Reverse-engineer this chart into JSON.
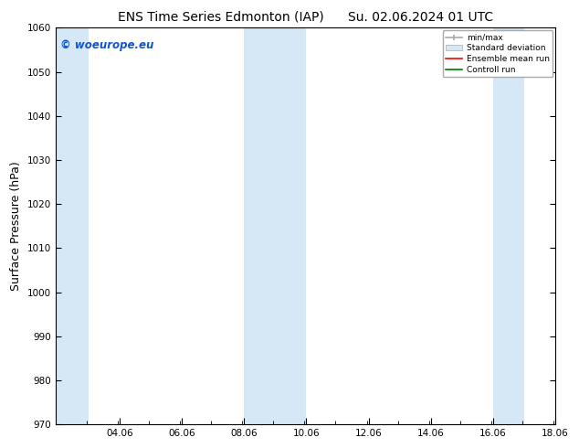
{
  "title_left": "ENS Time Series Edmonton (IAP)",
  "title_right": "Su. 02.06.2024 01 UTC",
  "ylabel": "Surface Pressure (hPa)",
  "ylim": [
    970,
    1060
  ],
  "yticks": [
    970,
    980,
    990,
    1000,
    1010,
    1020,
    1030,
    1040,
    1050,
    1060
  ],
  "xlim_start": 2.0,
  "xlim_end": 18.06,
  "xtick_labels": [
    "04.06",
    "06.06",
    "08.06",
    "10.06",
    "12.06",
    "14.06",
    "16.06",
    "18.06"
  ],
  "xtick_positions": [
    4.06,
    6.06,
    8.06,
    10.06,
    12.06,
    14.06,
    16.06,
    18.06
  ],
  "shaded_bands": [
    {
      "xmin": 2.0,
      "xmax": 3.06
    },
    {
      "xmin": 8.06,
      "xmax": 10.06
    },
    {
      "xmin": 16.06,
      "xmax": 17.06
    }
  ],
  "shade_color": "#d6e8f5",
  "background_color": "#ffffff",
  "watermark": "© woeurope.eu",
  "watermark_color": "#1155cc",
  "title_fontsize": 10,
  "tick_fontsize": 7.5,
  "label_fontsize": 9
}
